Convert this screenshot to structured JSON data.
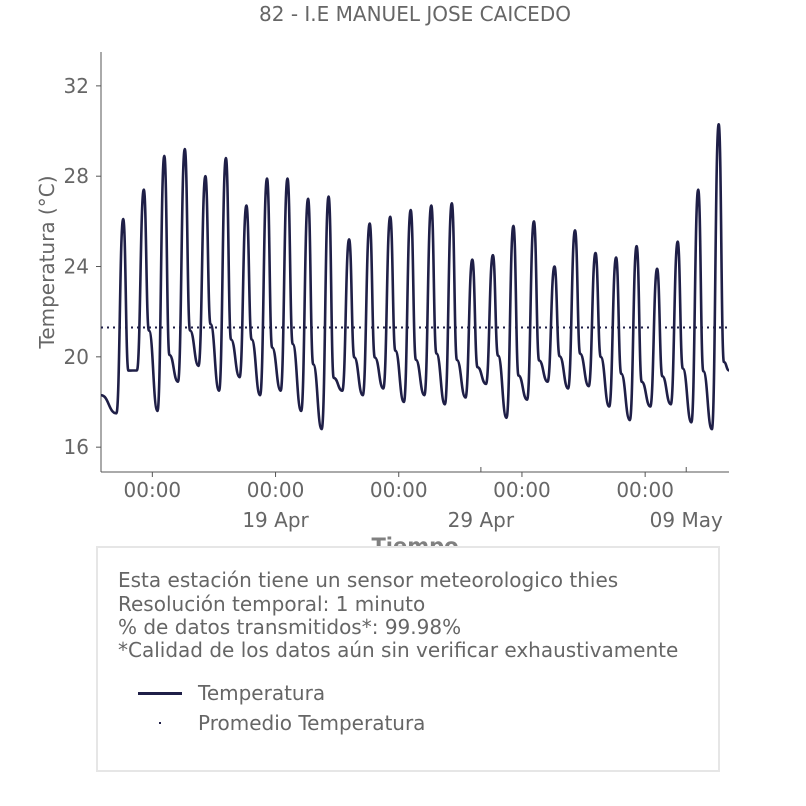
{
  "chart_data": {
    "type": "line",
    "title": "82 - I.E MANUEL JOSE CAICEDO",
    "xlabel": "Tiempo",
    "ylabel": "Temperatura (°C)",
    "ylim": [
      14.9,
      33.5
    ],
    "y_ticks": [
      16,
      20,
      24,
      28,
      32
    ],
    "xlim": [
      "2025-04-10T12:00",
      "2025-05-11T02:00"
    ],
    "x_ticks": [
      {
        "x": "2025-04-13T00:00",
        "time": "00:00",
        "date": ""
      },
      {
        "x": "2025-04-19T00:00",
        "time": "00:00",
        "date": "19 Apr"
      },
      {
        "x": "2025-04-25T00:00",
        "time": "00:00",
        "date": ""
      },
      {
        "x": "2025-05-01T00:00",
        "time": "00:00",
        "date": ""
      },
      {
        "x": "2025-05-07T00:00",
        "time": "00:00",
        "date": ""
      }
    ],
    "x_date_ticks": [
      {
        "x": "2025-04-29T00:00",
        "label": "29 Apr"
      },
      {
        "x": "2025-05-09T00:00",
        "label": "09 May"
      }
    ],
    "grid": false,
    "series": [
      {
        "name": "Temperatura",
        "color": "#1f1f47",
        "style": "solid",
        "daily_peaks": [
          {
            "date": "2025-04-11",
            "max": 26.1
          },
          {
            "date": "2025-04-12",
            "max": 27.4
          },
          {
            "date": "2025-04-13",
            "max": 28.9
          },
          {
            "date": "2025-04-14",
            "max": 29.2
          },
          {
            "date": "2025-04-15",
            "max": 28.0
          },
          {
            "date": "2025-04-16",
            "max": 28.8
          },
          {
            "date": "2025-04-17",
            "max": 26.7
          },
          {
            "date": "2025-04-18",
            "max": 27.9
          },
          {
            "date": "2025-04-19",
            "max": 27.9
          },
          {
            "date": "2025-04-20",
            "max": 27.0
          },
          {
            "date": "2025-04-21",
            "max": 27.1
          },
          {
            "date": "2025-04-22",
            "max": 25.2
          },
          {
            "date": "2025-04-23",
            "max": 25.9
          },
          {
            "date": "2025-04-24",
            "max": 26.2
          },
          {
            "date": "2025-04-25",
            "max": 26.5
          },
          {
            "date": "2025-04-26",
            "max": 26.7
          },
          {
            "date": "2025-04-27",
            "max": 26.8
          },
          {
            "date": "2025-04-28",
            "max": 24.3
          },
          {
            "date": "2025-04-29",
            "max": 24.5
          },
          {
            "date": "2025-04-30",
            "max": 25.8
          },
          {
            "date": "2025-05-01",
            "max": 26.0
          },
          {
            "date": "2025-05-02",
            "max": 24.0
          },
          {
            "date": "2025-05-03",
            "max": 25.6
          },
          {
            "date": "2025-05-04",
            "max": 24.6
          },
          {
            "date": "2025-05-05",
            "max": 24.4
          },
          {
            "date": "2025-05-06",
            "max": 24.9
          },
          {
            "date": "2025-05-07",
            "max": 23.9
          },
          {
            "date": "2025-05-08",
            "max": 25.1
          },
          {
            "date": "2025-05-09",
            "max": 27.4
          },
          {
            "date": "2025-05-10",
            "max": 30.3
          }
        ],
        "daily_minima": [
          {
            "date": "2025-04-10",
            "min": 17.8
          },
          {
            "date": "2025-04-11",
            "min": 17.5
          },
          {
            "date": "2025-04-12",
            "min": 19.4
          },
          {
            "date": "2025-04-13",
            "min": 17.6
          },
          {
            "date": "2025-04-14",
            "min": 18.9
          },
          {
            "date": "2025-04-15",
            "min": 19.6
          },
          {
            "date": "2025-04-16",
            "min": 18.5
          },
          {
            "date": "2025-04-17",
            "min": 19.1
          },
          {
            "date": "2025-04-18",
            "min": 18.3
          },
          {
            "date": "2025-04-19",
            "min": 18.5
          },
          {
            "date": "2025-04-20",
            "min": 17.6
          },
          {
            "date": "2025-04-21",
            "min": 16.8
          },
          {
            "date": "2025-04-22",
            "min": 18.5
          },
          {
            "date": "2025-04-23",
            "min": 18.3
          },
          {
            "date": "2025-04-24",
            "min": 18.6
          },
          {
            "date": "2025-04-25",
            "min": 18.0
          },
          {
            "date": "2025-04-26",
            "min": 18.3
          },
          {
            "date": "2025-04-27",
            "min": 17.9
          },
          {
            "date": "2025-04-28",
            "min": 18.2
          },
          {
            "date": "2025-04-29",
            "min": 18.8
          },
          {
            "date": "2025-04-30",
            "min": 17.3
          },
          {
            "date": "2025-05-01",
            "min": 18.1
          },
          {
            "date": "2025-05-02",
            "min": 18.9
          },
          {
            "date": "2025-05-03",
            "min": 18.6
          },
          {
            "date": "2025-05-04",
            "min": 18.7
          },
          {
            "date": "2025-05-05",
            "min": 17.8
          },
          {
            "date": "2025-05-06",
            "min": 17.2
          },
          {
            "date": "2025-05-07",
            "min": 17.8
          },
          {
            "date": "2025-05-08",
            "min": 17.9
          },
          {
            "date": "2025-05-09",
            "min": 17.1
          },
          {
            "date": "2025-05-10",
            "min": 16.8
          }
        ]
      },
      {
        "name": "Promedio Temperatura",
        "color": "#1f1f47",
        "style": "dotted",
        "value": 21.3
      }
    ]
  },
  "info": {
    "line1": "Esta estación tiene un sensor meteorologico thies",
    "line2": "Resolución temporal: 1 minuto",
    "line3": "% de datos transmitidos*: 99.98%",
    "line4": "*Calidad de los datos aún sin verificar exhaustivamente"
  },
  "legend": {
    "item1": "Temperatura",
    "item2": "Promedio Temperatura"
  }
}
